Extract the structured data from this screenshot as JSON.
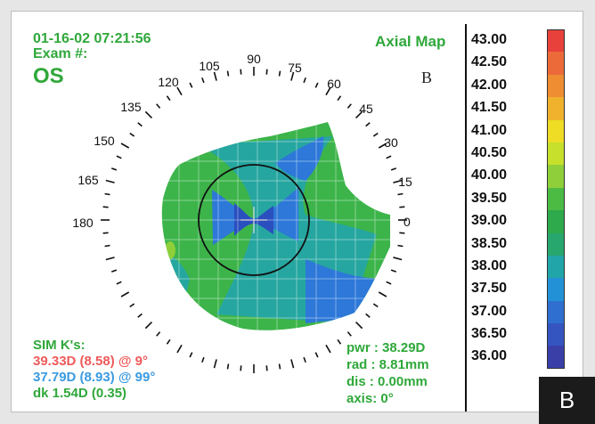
{
  "header": {
    "date_time": "01-16-02 07:21:56",
    "exam_label": "Exam #:",
    "eye": "OS",
    "map_title": "Axial Map",
    "panel_letter": "B"
  },
  "angle_labels": [
    "90",
    "75",
    "60",
    "45",
    "30",
    "15",
    "0",
    "105",
    "120",
    "135",
    "150",
    "165",
    "180"
  ],
  "sim_k": {
    "title": "SIM K's:",
    "k1": "39.33D (8.58) @ 9°",
    "k2": "37.79D (8.93) @ 99°",
    "dk": "dk 1.54D (0.35)"
  },
  "measurements": {
    "pwr": "pwr : 38.29D",
    "rad": "rad : 8.81mm",
    "dis": "dis : 0.00mm",
    "axis": "axis: 0°"
  },
  "color_scale": [
    {
      "value": "43.00",
      "color": "#e8413c"
    },
    {
      "value": "42.50",
      "color": "#ec6a3a"
    },
    {
      "value": "42.00",
      "color": "#ef8d33"
    },
    {
      "value": "41.50",
      "color": "#f0b22c"
    },
    {
      "value": "41.00",
      "color": "#eedc25"
    },
    {
      "value": "40.50",
      "color": "#c7e02c"
    },
    {
      "value": "40.00",
      "color": "#8fcf3a"
    },
    {
      "value": "39.50",
      "color": "#4cbb44"
    },
    {
      "value": "39.00",
      "color": "#2ea94c"
    },
    {
      "value": "38.50",
      "color": "#27a66e"
    },
    {
      "value": "38.00",
      "color": "#22a5a8"
    },
    {
      "value": "37.50",
      "color": "#2391d6"
    },
    {
      "value": "37.00",
      "color": "#2e6fcf"
    },
    {
      "value": "36.50",
      "color": "#3455bf"
    },
    {
      "value": "36.00",
      "color": "#3a3fa8"
    }
  ],
  "colors": {
    "text_green": "#2fa83a",
    "text_red": "#ef5a5a",
    "text_blue": "#3a9ae0",
    "map_green": "#3cb44a",
    "map_teal": "#26a6a0",
    "map_blue": "#2d78d8",
    "map_darkblue": "#2a4fbf"
  },
  "corner_badge": "B"
}
